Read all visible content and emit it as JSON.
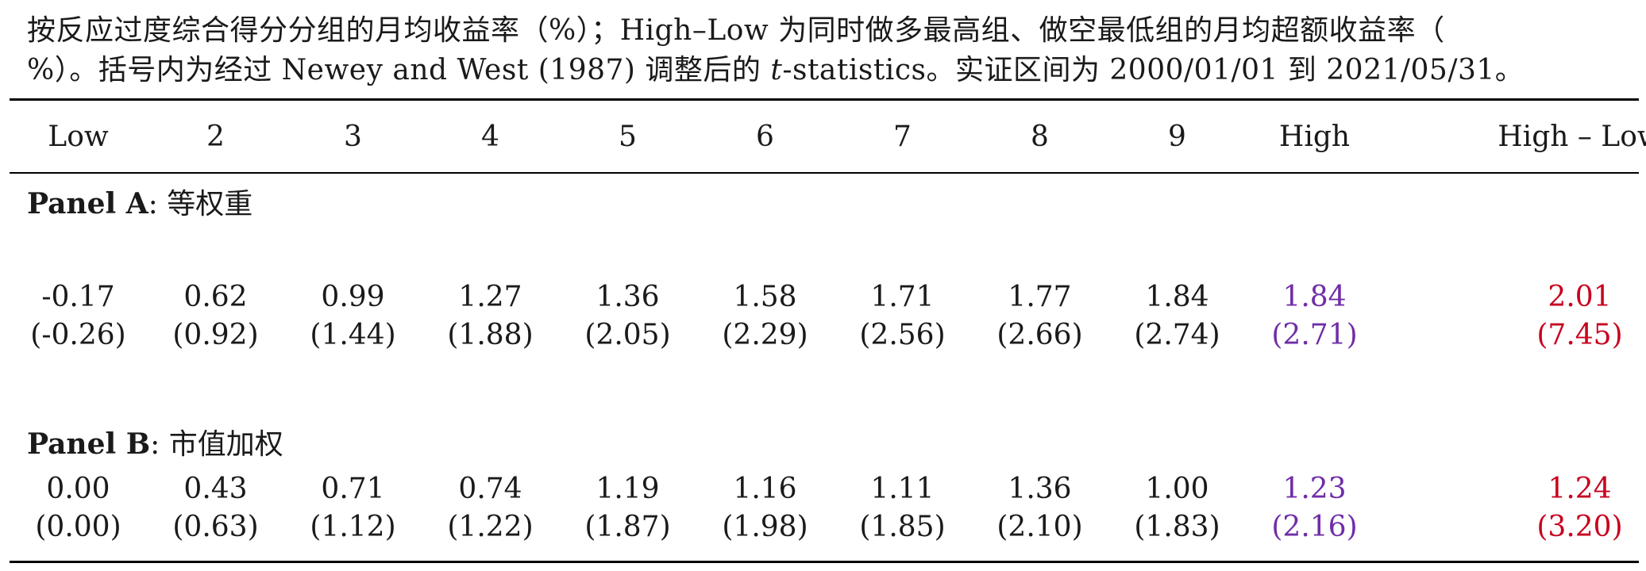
{
  "caption": {
    "part1": "按反应过度综合得分分组的月均收益率（%）；High–Low 为同时做多最高组、做空最低组的月均超额收益率（",
    "part2": "%）。括号内为经过 Newey and West (1987) 调整后的 ",
    "t_symbol": "t",
    "part3": "-statistics。实证区间为 2000/01/01 到 2021/05/31。"
  },
  "columns": [
    "Low",
    "2",
    "3",
    "4",
    "5",
    "6",
    "7",
    "8",
    "9",
    "High",
    "High – Low"
  ],
  "panels": [
    {
      "label": "Panel A",
      "sep": ":",
      "name": "等权重",
      "returns": [
        "-0.17",
        "0.62",
        "0.99",
        "1.27",
        "1.36",
        "1.58",
        "1.71",
        "1.77",
        "1.84",
        "1.84",
        "2.01"
      ],
      "tstats": [
        "(-0.26)",
        "(0.92)",
        "(1.44)",
        "(1.88)",
        "(2.05)",
        "(2.29)",
        "(2.56)",
        "(2.66)",
        "(2.74)",
        "(2.71)",
        "(7.45)"
      ]
    },
    {
      "label": "Panel B",
      "sep": ":",
      "name": "市值加权",
      "returns": [
        "0.00",
        "0.43",
        "0.71",
        "0.74",
        "1.19",
        "1.16",
        "1.11",
        "1.36",
        "1.00",
        "1.23",
        "1.24"
      ],
      "tstats": [
        "(0.00)",
        "(0.63)",
        "(1.12)",
        "(1.22)",
        "(1.87)",
        "(1.98)",
        "(1.85)",
        "(2.10)",
        "(1.83)",
        "(2.16)",
        "(3.20)"
      ]
    }
  ],
  "highlight_colors": {
    "high_column": "#6f2da8",
    "high_minus_low_column": "#c8001e"
  }
}
